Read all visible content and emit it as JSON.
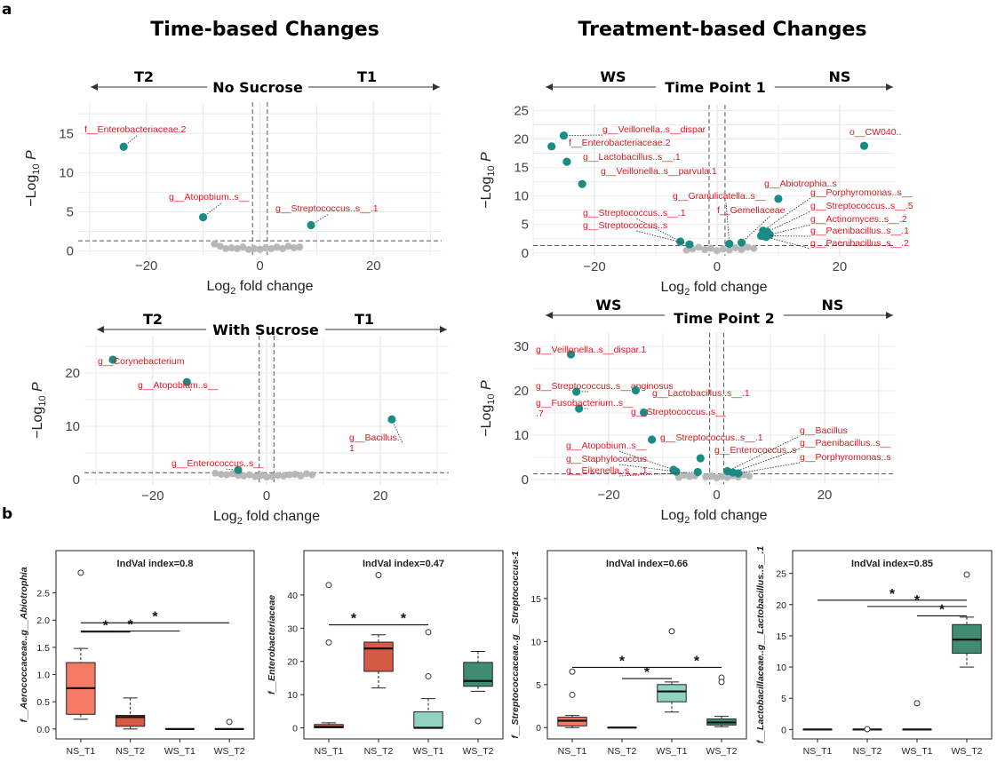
{
  "panels": {
    "a": "a",
    "b": "b"
  },
  "headers": {
    "time": "Time-based Changes",
    "treat": "Treatment-based Changes"
  },
  "colors": {
    "sig": "#1a8c84",
    "ns": "#b8b8b8",
    "label": "#e3161e",
    "grid": "#ebebeb",
    "NS_T1": "#f57a63",
    "NS_T2": "#d35a44",
    "WS_T1": "#8fd3c0",
    "WS_T2": "#3f8c72"
  },
  "chart_data": [
    {
      "type": "scatter",
      "id": "v1",
      "title": "No Sucrose",
      "left_group": "T2",
      "right_group": "T1",
      "xlabel": "Log2 fold change",
      "ylabel": "−Log10 P",
      "xlim": [
        -32,
        32
      ],
      "ylim": [
        -0.5,
        19
      ],
      "xticks": [
        -20,
        0,
        20
      ],
      "yticks": [
        0,
        5,
        10,
        15
      ],
      "fc_cutoff": [
        -1.3,
        1.3
      ],
      "p_cutoff": 1.3,
      "significant": [
        {
          "x": -24,
          "y": 13.3,
          "label": "f__Enterobacteriaceae.2"
        },
        {
          "x": -10,
          "y": 4.3,
          "label": "g__Atopobium..s__"
        },
        {
          "x": 9,
          "y": 3.3,
          "label": "g__Streptococcus..s__.1"
        }
      ],
      "nonsignificant": [
        [
          -8,
          0.9
        ],
        [
          -7,
          0.6
        ],
        [
          -5,
          0.4
        ],
        [
          -4,
          0.3
        ],
        [
          -3,
          0.5
        ],
        [
          -2,
          0.2
        ],
        [
          -1,
          0.3
        ],
        [
          0,
          0.2
        ],
        [
          1,
          0.4
        ],
        [
          2,
          0.3
        ],
        [
          3,
          0.5
        ],
        [
          4,
          0.3
        ],
        [
          5,
          0.6
        ],
        [
          6,
          0.4
        ],
        [
          7,
          0.5
        ],
        [
          -6,
          0.3
        ]
      ]
    },
    {
      "type": "scatter",
      "id": "v2",
      "title": "With Sucrose",
      "left_group": "T2",
      "right_group": "T1",
      "xlabel": "Log2 fold change",
      "ylabel": "−Log10 P",
      "xlim": [
        -32,
        32
      ],
      "ylim": [
        -1,
        27
      ],
      "xticks": [
        -20,
        0,
        20
      ],
      "yticks": [
        0,
        10,
        20
      ],
      "fc_cutoff": [
        -1.3,
        1.3
      ],
      "p_cutoff": 1.3,
      "significant": [
        {
          "x": -27,
          "y": 22.5,
          "label": "g__Corynebacterium"
        },
        {
          "x": -14,
          "y": 18.3,
          "label": "g__Atopobium..s__"
        },
        {
          "x": 22,
          "y": 11.3,
          "label": "g__Bacillus.\n1"
        },
        {
          "x": -5,
          "y": 1.8,
          "label": "g__Enterococcus..s__"
        }
      ],
      "nonsignificant": [
        [
          -9,
          1.2
        ],
        [
          -8,
          1.0
        ],
        [
          -7,
          0.9
        ],
        [
          -6,
          1.1
        ],
        [
          -5,
          0.8
        ],
        [
          -4,
          0.7
        ],
        [
          -3,
          0.9
        ],
        [
          -2,
          0.6
        ],
        [
          -1,
          0.8
        ],
        [
          0,
          0.5
        ],
        [
          1,
          0.6
        ],
        [
          2,
          0.8
        ],
        [
          3,
          0.7
        ],
        [
          4,
          0.9
        ],
        [
          5,
          1.0
        ],
        [
          6,
          0.7
        ],
        [
          7,
          1.1
        ],
        [
          8,
          0.9
        ]
      ]
    },
    {
      "type": "scatter",
      "id": "v3",
      "title": "Time Point 1",
      "left_group": "WS",
      "right_group": "NS",
      "xlabel": "Log2 fold change",
      "ylabel": "−Log10 P",
      "xlim": [
        -30,
        29
      ],
      "ylim": [
        -0.5,
        26
      ],
      "xticks": [
        -20,
        0,
        20
      ],
      "yticks": [
        0,
        5,
        10,
        15,
        20,
        25
      ],
      "fc_cutoff": [
        -1.3,
        1.3
      ],
      "p_cutoff": 1.3,
      "significant": [
        {
          "x": -25,
          "y": 20.6,
          "label": "g__Veillonella..s__dispar"
        },
        {
          "x": -27,
          "y": 18.7,
          "label": "f__Enterobacteriaceae.2"
        },
        {
          "x": -24.5,
          "y": 16.0,
          "label": "g__Lactobacillus..s__.1"
        },
        {
          "x": -22,
          "y": 12.1,
          "label": "g__Veillonella..s__parvula.1"
        },
        {
          "x": 24,
          "y": 18.8,
          "label": "o__CW040.."
        },
        {
          "x": 10,
          "y": 9.5,
          "label": "g__Abiotrophia..s"
        },
        {
          "x": -6,
          "y": 2.0,
          "label": "g__Streptococcus..s__.1"
        },
        {
          "x": -4.5,
          "y": 1.5,
          "label": "g__Streptococcus..s"
        },
        {
          "x": 2,
          "y": 1.6,
          "label": "g__Granulicatella..s__"
        },
        {
          "x": 4,
          "y": 1.8,
          "label": "f__Gemellaceae"
        },
        {
          "x": 7.5,
          "y": 3.9,
          "label": "g__Porphyromonas..s__"
        },
        {
          "x": 8.2,
          "y": 3.7,
          "label": "g__Streptococcus..s__.5"
        },
        {
          "x": 8.6,
          "y": 3.2,
          "label": "g__Actinomyces..s__.2"
        },
        {
          "x": 7.2,
          "y": 3.0,
          "label": "g__Paenibacillus..s__.1"
        },
        {
          "x": 8.0,
          "y": 2.8,
          "label": "g__Paenibacillus..s__.2"
        }
      ],
      "nonsignificant": [
        [
          -3,
          1.0
        ],
        [
          -2,
          0.6
        ],
        [
          -1,
          0.8
        ],
        [
          0,
          0.4
        ],
        [
          1,
          0.7
        ],
        [
          2,
          0.5
        ],
        [
          3,
          0.9
        ],
        [
          4,
          0.6
        ],
        [
          5,
          1.0
        ],
        [
          -4,
          0.7
        ],
        [
          6,
          0.8
        ],
        [
          -5,
          0.5
        ]
      ]
    },
    {
      "type": "scatter",
      "id": "v4",
      "title": "Time Point 2",
      "left_group": "WS",
      "right_group": "NS",
      "xlabel": "Log2 fold change",
      "ylabel": "−Log10 P",
      "xlim": [
        -34,
        33
      ],
      "ylim": [
        -1,
        33
      ],
      "xticks": [
        -20,
        0,
        20
      ],
      "yticks": [
        0,
        10,
        20,
        30
      ],
      "fc_cutoff": [
        -1.3,
        1.3
      ],
      "p_cutoff": 1.3,
      "significant": [
        {
          "x": -27,
          "y": 28.2,
          "label": "g__Veillonella..s__dispar.1"
        },
        {
          "x": -26,
          "y": 19.8,
          "label": "g__Streptococcus..s__anginosus"
        },
        {
          "x": -15,
          "y": 20.1,
          "label": "g__Lactobacillus..s__.1"
        },
        {
          "x": -25.5,
          "y": 16.0,
          "label": "g__Fusobacterium..s__\n.7"
        },
        {
          "x": -13.5,
          "y": 15.1,
          "label": "g__Streptococcus..s__"
        },
        {
          "x": -12,
          "y": 9.0,
          "label": "g__Streptococcus..s__.1"
        },
        {
          "x": -3,
          "y": 4.8,
          "label": "g__Enterococcus..s"
        },
        {
          "x": -8,
          "y": 2.2,
          "label": "g__Atopobium..s__"
        },
        {
          "x": -7.5,
          "y": 1.8,
          "label": "g__Staphylococcus"
        },
        {
          "x": -3.5,
          "y": 1.7,
          "label": "g__Eikenella..s__.1"
        },
        {
          "x": 2,
          "y": 1.9,
          "label": "g__Bacillus"
        },
        {
          "x": 3,
          "y": 1.6,
          "label": "g__Paenibacillus..s__"
        },
        {
          "x": 4,
          "y": 1.4,
          "label": "g__Porphyromonas..s"
        }
      ],
      "nonsignificant": [
        [
          -6,
          1.0
        ],
        [
          -5,
          0.7
        ],
        [
          -4,
          0.9
        ],
        [
          -2,
          0.6
        ],
        [
          -1,
          0.8
        ],
        [
          0,
          0.4
        ],
        [
          1,
          0.7
        ],
        [
          2,
          0.5
        ],
        [
          3,
          0.9
        ],
        [
          4,
          0.6
        ],
        [
          5,
          1.1
        ],
        [
          6,
          0.8
        ],
        [
          -7,
          0.5
        ]
      ]
    },
    {
      "type": "box",
      "id": "b1",
      "annotation": "IndVal index=0.8",
      "ylabel": "f__Aerococcaceae..g__Abiotrophia",
      "categories": [
        "NS_T1",
        "NS_T2",
        "WS_T1",
        "WS_T2"
      ],
      "ylim": [
        -0.1,
        2.95
      ],
      "yticks": [
        0.0,
        0.5,
        1.0,
        1.5,
        2.0,
        2.5
      ],
      "tick_labels": [
        "0.0",
        "0.5",
        "1.0",
        "1.5",
        "2.0",
        "2.5"
      ],
      "boxes": [
        {
          "min": 0.18,
          "q1": 0.27,
          "median": 0.75,
          "q3": 1.22,
          "max": 1.48,
          "outliers": [
            2.87
          ]
        },
        {
          "min": 0.0,
          "q1": 0.05,
          "median": 0.22,
          "q3": 0.25,
          "max": 0.57,
          "outliers": []
        },
        {
          "min": 0.0,
          "q1": 0.0,
          "median": 0.0,
          "q3": 0.0,
          "max": 0.0,
          "outliers": []
        },
        {
          "min": 0.0,
          "q1": 0.0,
          "median": 0.0,
          "q3": 0.0,
          "max": 0.0,
          "outliers": [
            0.13
          ]
        }
      ],
      "brackets": [
        {
          "from": 0,
          "to": 1,
          "y": 1.78,
          "label": "*"
        },
        {
          "from": 0,
          "to": 2,
          "y": 1.8,
          "label": "*"
        },
        {
          "from": 0,
          "to": 3,
          "y": 1.95,
          "label": "*"
        }
      ]
    },
    {
      "type": "box",
      "id": "b2",
      "annotation": "IndVal index=0.47",
      "ylabel": "f__Enterobacteriaceae",
      "categories": [
        "NS_T1",
        "NS_T2",
        "WS_T1",
        "WS_T2"
      ],
      "ylim": [
        -2,
        48
      ],
      "yticks": [
        0,
        10,
        20,
        30,
        40
      ],
      "tick_labels": [
        "0",
        "10",
        "20",
        "30",
        "40"
      ],
      "boxes": [
        {
          "min": 0.0,
          "q1": 0.0,
          "median": 0.3,
          "q3": 1.0,
          "max": 1.5,
          "outliers": [
            43,
            25.7
          ]
        },
        {
          "min": 12,
          "q1": 17,
          "median": 23.9,
          "q3": 25.8,
          "max": 28,
          "outliers": [
            46
          ]
        },
        {
          "min": 0.0,
          "q1": 0.0,
          "median": 0.0,
          "q3": 4.8,
          "max": 8.8,
          "outliers": [
            28.8,
            15.5
          ]
        },
        {
          "min": 11,
          "q1": 12.5,
          "median": 14.1,
          "q3": 19.7,
          "max": 23,
          "outliers": [
            2.0
          ]
        }
      ],
      "brackets": [
        {
          "from": 0,
          "to": 1,
          "y": 31,
          "label": "*"
        },
        {
          "from": 1,
          "to": 2,
          "y": 31,
          "label": "*"
        }
      ]
    },
    {
      "type": "box",
      "id": "b3",
      "annotation": "IndVal index=0.66",
      "ylabel": "f__Streptococcaceae..g__Streptococcus-1",
      "categories": [
        "NS_T1",
        "NS_T2",
        "WS_T1",
        "WS_T2"
      ],
      "ylim": [
        -0.8,
        18.5
      ],
      "yticks": [
        0,
        5,
        10,
        15
      ],
      "tick_labels": [
        "0",
        "5",
        "10",
        "15"
      ],
      "boxes": [
        {
          "min": 0.0,
          "q1": 0.2,
          "median": 0.8,
          "q3": 1.2,
          "max": 1.4,
          "outliers": [
            6.5,
            3.8
          ]
        },
        {
          "min": 0.0,
          "q1": 0.0,
          "median": 0.0,
          "q3": 0.0,
          "max": 0.0,
          "outliers": []
        },
        {
          "min": 1.8,
          "q1": 3.0,
          "median": 4.2,
          "q3": 5.0,
          "max": 5.3,
          "outliers": [
            11.2
          ]
        },
        {
          "min": 0.1,
          "q1": 0.3,
          "median": 0.6,
          "q3": 1.0,
          "max": 1.3,
          "outliers": [
            5.8,
            5.3
          ]
        }
      ],
      "brackets": [
        {
          "from": 0,
          "to": 2,
          "y": 7.0,
          "label": "*"
        },
        {
          "from": 1,
          "to": 2,
          "y": 5.7,
          "label": "*"
        },
        {
          "from": 2,
          "to": 3,
          "y": 7.0,
          "label": "*"
        }
      ]
    },
    {
      "type": "box",
      "id": "b4",
      "annotation": "IndVal index=0.85",
      "ylabel": "f__Lactobacillaceae..g__Lactobacillus..s__.1",
      "categories": [
        "NS_T1",
        "NS_T2",
        "WS_T1",
        "WS_T2"
      ],
      "ylim": [
        -0.8,
        25.8
      ],
      "yticks": [
        0,
        5,
        10,
        15,
        20,
        25
      ],
      "tick_labels": [
        "0",
        "5",
        "10",
        "15",
        "20",
        "25"
      ],
      "boxes": [
        {
          "min": 0.0,
          "q1": 0.0,
          "median": 0.0,
          "q3": 0.0,
          "max": 0.0,
          "outliers": []
        },
        {
          "min": 0.0,
          "q1": 0.0,
          "median": 0.0,
          "q3": 0.0,
          "max": 0.0,
          "outliers": [
            0.05
          ]
        },
        {
          "min": 0.0,
          "q1": 0.0,
          "median": 0.0,
          "q3": 0.0,
          "max": 0.0,
          "outliers": [
            4.2
          ]
        },
        {
          "min": 10.0,
          "q1": 12.2,
          "median": 14.4,
          "q3": 16.8,
          "max": 18.0,
          "outliers": [
            24.8
          ]
        }
      ],
      "brackets": [
        {
          "from": 0,
          "to": 3,
          "y": 20.7,
          "label": "*"
        },
        {
          "from": 1,
          "to": 3,
          "y": 19.7,
          "label": "*"
        },
        {
          "from": 2,
          "to": 3,
          "y": 18.2,
          "label": "*"
        }
      ]
    }
  ]
}
